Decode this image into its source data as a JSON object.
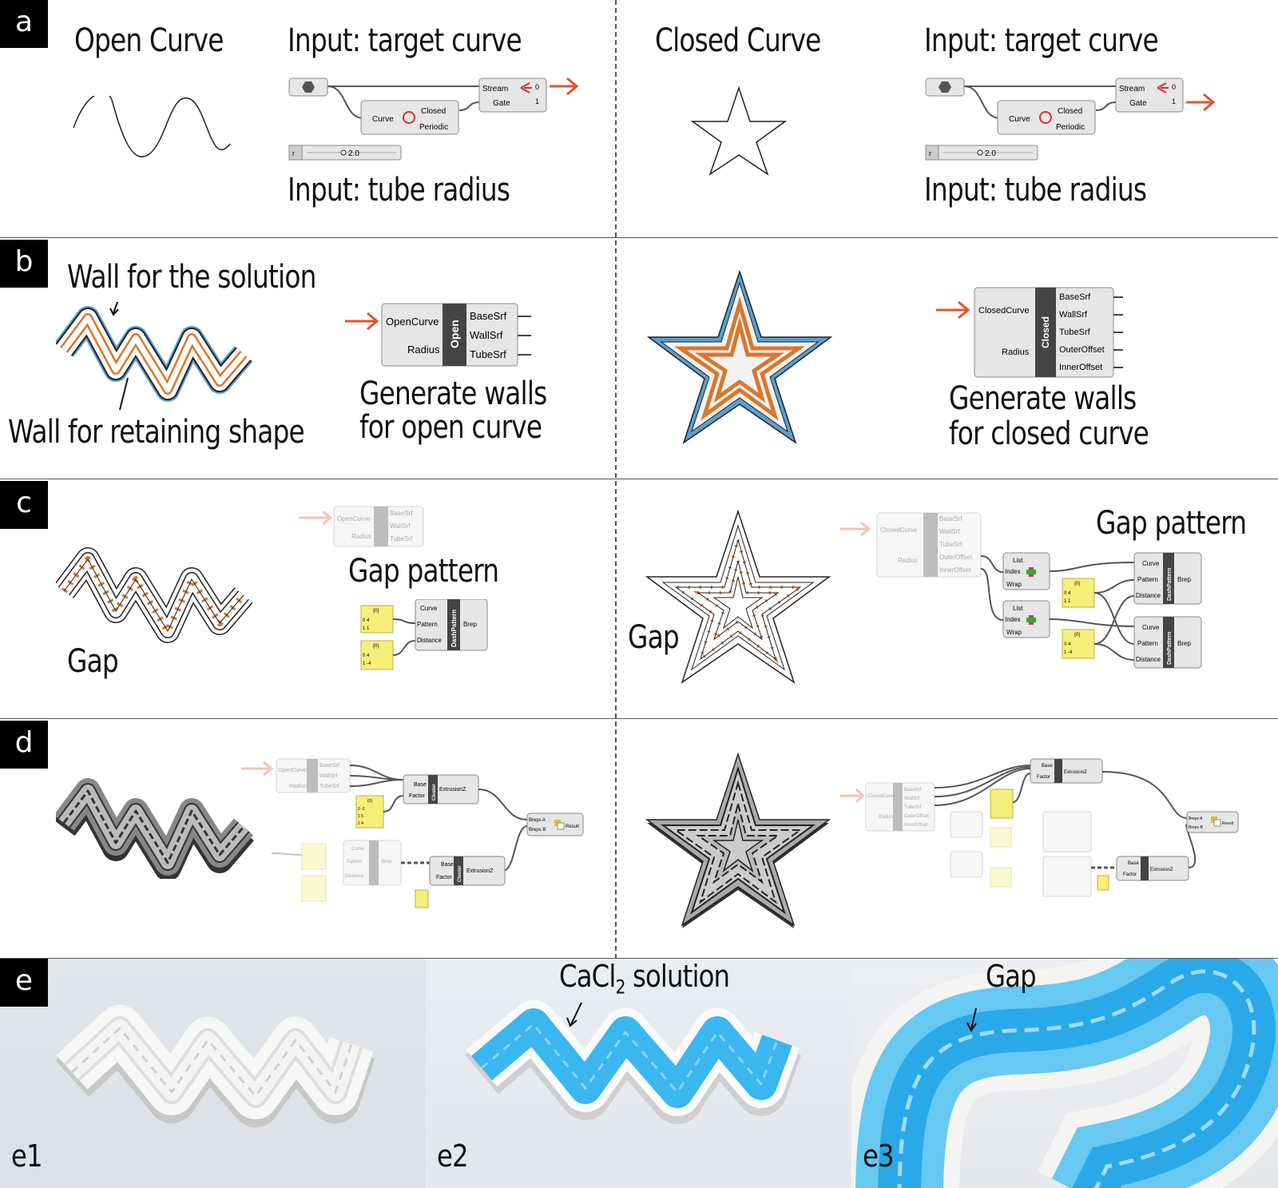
{
  "panels": {
    "a": {
      "tag": "a",
      "left_title": "Open Curve",
      "right_title": "Closed Curve",
      "input_target": "Input: target curve",
      "input_radius": "Input: tube radius",
      "node": {
        "stream": "Stream",
        "gate": "Gate",
        "curve": "Curve",
        "closed": "Closed",
        "periodic": "Periodic",
        "out0": "0",
        "out1": "1",
        "slider_letter": "r",
        "slider_value": "2.0"
      }
    },
    "b": {
      "tag": "b",
      "wall_solution": "Wall for the solution",
      "wall_retaining": "Wall for retaining shape",
      "open_node": {
        "in1": "OpenCurve",
        "in2": "Radius",
        "name": "Open",
        "outs": [
          "BaseSrf",
          "WallSrf",
          "TubeSrf"
        ]
      },
      "closed_node": {
        "in1": "ClosedCurve",
        "in2": "Radius",
        "name": "Closed",
        "outs": [
          "BaseSrf",
          "WallSrf",
          "TubeSrf",
          "OuterOffset",
          "InnerOffset"
        ]
      },
      "gen_open_1": "Generate walls",
      "gen_open_2": "for open curve",
      "gen_closed_1": "Generate walls",
      "gen_closed_2": "for closed curve"
    },
    "c": {
      "tag": "c",
      "gap": "Gap",
      "gap_pattern": "Gap pattern",
      "dash": {
        "curve": "Curve",
        "pattern": "Pattern",
        "distance": "Distance",
        "name": "DashPattern",
        "out": "Brep"
      },
      "list": {
        "list": "List",
        "index": "Index",
        "wrap": "Wrap"
      },
      "panel_vals_1": [
        "{0}",
        "0 4",
        "1 1"
      ],
      "panel_vals_2": [
        "{0}",
        "0 4",
        "1 -4"
      ]
    },
    "d": {
      "tag": "d",
      "extr": {
        "base": "Base",
        "factor": "Factor",
        "name": "Cluster",
        "out": "ExtrusionZ"
      },
      "union": {
        "a": "Breps A",
        "b": "Breps B",
        "out": "Result"
      },
      "panel_vals": [
        "{0}",
        "0 -2",
        "1 5",
        "2 4"
      ]
    },
    "e": {
      "tag": "e",
      "labels": [
        "e1",
        "e2",
        "e3"
      ],
      "solution": "CaCl",
      "solution_sub": "2",
      "solution_tail": " solution",
      "gap": "Gap"
    }
  },
  "colors": {
    "orange_wall": "#d9772b",
    "blue_wall": "#5a9fd1",
    "red_arrow": "#e4532c",
    "pale_arrow": "#f2a48e",
    "node_bg": "#e6e6e6",
    "yellow_panel": "#f5ef7a",
    "gel_blue": "#39b7ee"
  }
}
